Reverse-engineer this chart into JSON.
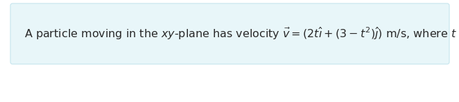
{
  "background_color": "#ffffff",
  "box_facecolor": "#e8f6f9",
  "box_edgecolor": "#c5e5ee",
  "text_color": "#2a2a2a",
  "figsize": [
    6.62,
    1.48
  ],
  "dpi": 100,
  "fontsize": 11.5,
  "text": "A particle moving in the $xy$-plane has velocity $\\vec{v} = (2t\\hat{\\imath} + (3-t^2)\\hat{\\jmath})$ m/s, where $t$ is in s."
}
